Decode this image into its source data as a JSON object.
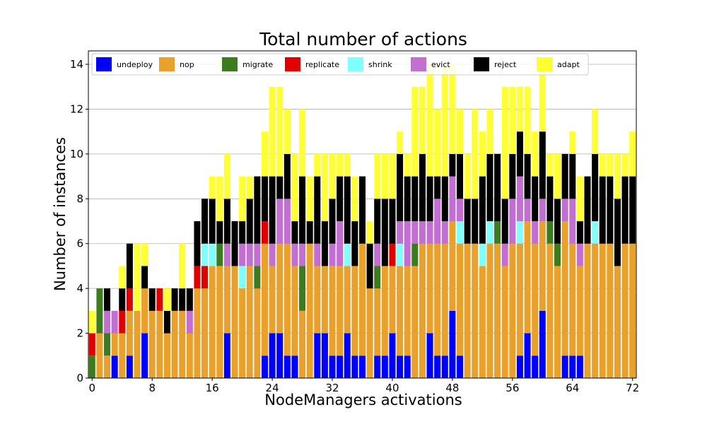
{
  "chart_data": {
    "type": "bar",
    "stacked": true,
    "title": "Total number of actions",
    "xlabel": "NodeManagers activations",
    "ylabel": "Number of instances",
    "xlim": [
      -0.5,
      72.5
    ],
    "ylim": [
      0,
      14.6
    ],
    "xticks": [
      0,
      8,
      16,
      24,
      32,
      40,
      48,
      56,
      64,
      72
    ],
    "yticks": [
      0,
      2,
      4,
      6,
      8,
      10,
      12,
      14
    ],
    "grid": "horizontal",
    "legend_position": "top",
    "x": [
      0,
      1,
      2,
      3,
      4,
      5,
      6,
      7,
      8,
      9,
      10,
      11,
      12,
      13,
      14,
      15,
      16,
      17,
      18,
      19,
      20,
      21,
      22,
      23,
      24,
      25,
      26,
      27,
      28,
      29,
      30,
      31,
      32,
      33,
      34,
      35,
      36,
      37,
      38,
      39,
      40,
      41,
      42,
      43,
      44,
      45,
      46,
      47,
      48,
      49,
      50,
      51,
      52,
      53,
      54,
      55,
      56,
      57,
      58,
      59,
      60,
      61,
      62,
      63,
      64,
      65,
      66,
      67,
      68,
      69,
      70,
      71,
      72
    ],
    "series": [
      {
        "name": "undeploy",
        "color": "#0000ff",
        "values": [
          0,
          0,
          0,
          1,
          0,
          1,
          0,
          2,
          0,
          0,
          0,
          0,
          0,
          0,
          0,
          0,
          0,
          0,
          2,
          0,
          0,
          0,
          0,
          1,
          2,
          2,
          1,
          1,
          0,
          0,
          2,
          2,
          1,
          1,
          2,
          1,
          1,
          0,
          1,
          1,
          2,
          1,
          1,
          0,
          0,
          2,
          1,
          1,
          3,
          1,
          0,
          0,
          0,
          0,
          0,
          0,
          0,
          1,
          2,
          1,
          3,
          0,
          0,
          1,
          1,
          1,
          0,
          0,
          0,
          0,
          0,
          0,
          0
        ]
      },
      {
        "name": "nop",
        "color": "#e9a12b",
        "values": [
          0,
          2,
          1,
          1,
          2,
          2,
          3,
          2,
          3,
          3,
          2,
          3,
          3,
          2,
          4,
          4,
          5,
          5,
          3,
          5,
          4,
          5,
          4,
          5,
          3,
          4,
          5,
          4,
          3,
          6,
          3,
          3,
          4,
          4,
          3,
          4,
          5,
          4,
          3,
          4,
          3,
          4,
          4,
          5,
          6,
          4,
          5,
          5,
          4,
          5,
          6,
          6,
          5,
          6,
          6,
          5,
          6,
          5,
          5,
          5,
          4,
          6,
          5,
          6,
          5,
          4,
          6,
          6,
          6,
          6,
          5,
          6,
          6
        ]
      },
      {
        "name": "migrate",
        "color": "#3c7c1f",
        "values": [
          1,
          2,
          1,
          0,
          0,
          0,
          0,
          0,
          0,
          0,
          0,
          0,
          0,
          0,
          0,
          0,
          0,
          1,
          0,
          0,
          0,
          0,
          1,
          0,
          0,
          0,
          0,
          0,
          2,
          0,
          0,
          0,
          0,
          0,
          0,
          0,
          0,
          0,
          1,
          0,
          0,
          0,
          0,
          1,
          0,
          0,
          0,
          0,
          0,
          0,
          0,
          0,
          0,
          0,
          1,
          0,
          0,
          0,
          0,
          0,
          0,
          1,
          1,
          0,
          0,
          0,
          0,
          0,
          0,
          0,
          0,
          0,
          0
        ]
      },
      {
        "name": "replicate",
        "color": "#e00000",
        "values": [
          1,
          0,
          0,
          0,
          1,
          1,
          0,
          0,
          0,
          1,
          0,
          0,
          0,
          0,
          1,
          1,
          0,
          0,
          0,
          0,
          0,
          0,
          0,
          1,
          0,
          0,
          0,
          0,
          0,
          0,
          0,
          0,
          0,
          0,
          0,
          0,
          0,
          0,
          0,
          0,
          1,
          0,
          0,
          0,
          0,
          0,
          0,
          0,
          0,
          0,
          0,
          0,
          0,
          0,
          0,
          0,
          0,
          0,
          0,
          0,
          0,
          0,
          0,
          0,
          0,
          0,
          0,
          0,
          0,
          0,
          0,
          0,
          0
        ]
      },
      {
        "name": "shrink",
        "color": "#80ffff",
        "values": [
          0,
          0,
          0,
          0,
          0,
          0,
          0,
          0,
          0,
          0,
          0,
          0,
          0,
          0,
          0,
          1,
          1,
          0,
          0,
          0,
          1,
          0,
          0,
          0,
          0,
          0,
          0,
          0,
          0,
          0,
          0,
          0,
          0,
          0,
          1,
          0,
          0,
          0,
          0,
          0,
          0,
          1,
          0,
          0,
          0,
          0,
          0,
          0,
          0,
          1,
          0,
          0,
          1,
          1,
          0,
          0,
          0,
          1,
          0,
          0,
          0,
          0,
          0,
          0,
          0,
          0,
          0,
          1,
          0,
          0,
          0,
          0,
          0
        ]
      },
      {
        "name": "evict",
        "color": "#c36ed3",
        "values": [
          0,
          0,
          1,
          1,
          0,
          0,
          0,
          0,
          0,
          0,
          0,
          0,
          0,
          1,
          0,
          0,
          0,
          0,
          1,
          0,
          1,
          1,
          1,
          0,
          1,
          2,
          2,
          1,
          1,
          0,
          1,
          0,
          1,
          2,
          0,
          0,
          0,
          0,
          1,
          0,
          0,
          1,
          2,
          1,
          1,
          1,
          2,
          1,
          2,
          1,
          0,
          0,
          0,
          0,
          0,
          1,
          2,
          2,
          1,
          1,
          1,
          0,
          0,
          1,
          2,
          1,
          0,
          0,
          0,
          0,
          0,
          0,
          0
        ]
      },
      {
        "name": "reject",
        "color": "#000000",
        "values": [
          0,
          0,
          1,
          0,
          1,
          2,
          0,
          1,
          1,
          0,
          1,
          1,
          1,
          1,
          2,
          2,
          2,
          1,
          2,
          2,
          1,
          2,
          3,
          2,
          3,
          1,
          2,
          1,
          3,
          1,
          3,
          2,
          2,
          2,
          3,
          2,
          3,
          2,
          2,
          3,
          2,
          3,
          2,
          2,
          3,
          2,
          1,
          2,
          1,
          2,
          2,
          2,
          3,
          3,
          3,
          2,
          2,
          2,
          2,
          2,
          3,
          2,
          2,
          2,
          2,
          1,
          3,
          3,
          3,
          3,
          3,
          3,
          3
        ]
      },
      {
        "name": "adapt",
        "color": "#ffff33",
        "values": [
          1,
          0,
          0,
          0,
          1,
          0,
          3,
          1,
          0,
          0,
          1,
          0,
          2,
          0,
          0,
          0,
          1,
          2,
          2,
          0,
          2,
          1,
          0,
          2,
          4,
          4,
          2,
          3,
          3,
          2,
          1,
          3,
          2,
          1,
          1,
          2,
          0,
          1,
          2,
          2,
          2,
          1,
          1,
          4,
          3,
          5,
          3,
          5,
          4,
          2,
          2,
          4,
          2,
          2,
          0,
          5,
          3,
          2,
          3,
          2,
          3,
          1,
          2,
          0,
          1,
          2,
          0,
          2,
          1,
          1,
          2,
          1,
          2
        ]
      }
    ]
  }
}
